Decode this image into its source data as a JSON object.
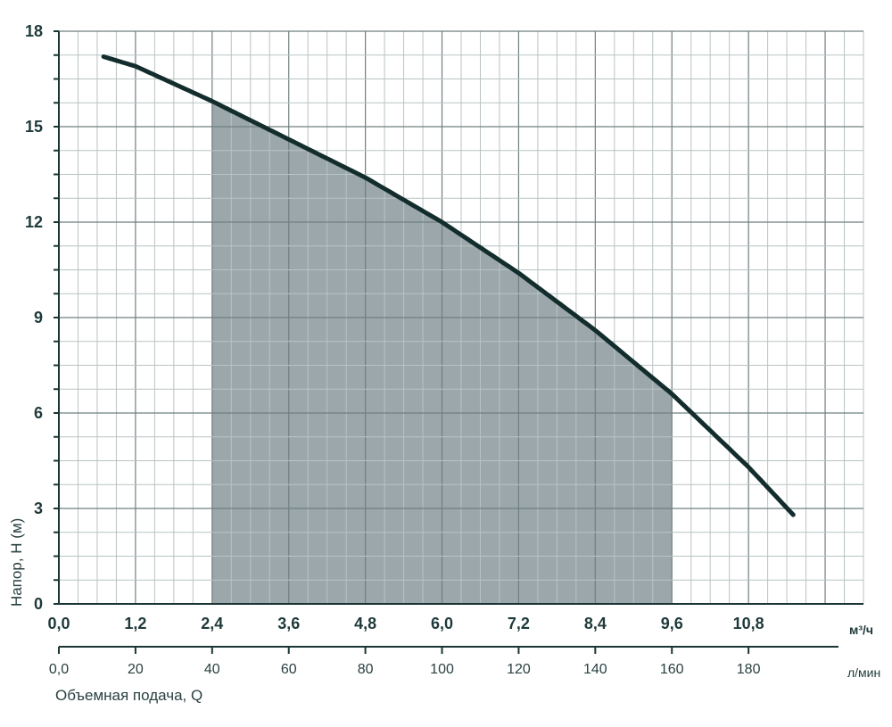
{
  "chart_data": {
    "type": "line",
    "title": "",
    "ylabel": "Напор, Н (м)",
    "xlabel": "Объемная подача, Q",
    "x_unit_top": "м³/ч",
    "x_unit_bottom": "л/мин",
    "xlim": [
      0,
      12.6
    ],
    "ylim": [
      0,
      18
    ],
    "x_ticks": [
      "0,0",
      "1,2",
      "2,4",
      "3,6",
      "4,8",
      "6,0",
      "7,2",
      "8,4",
      "9,6",
      "10,8"
    ],
    "x_tick_values": [
      0,
      1.2,
      2.4,
      3.6,
      4.8,
      6.0,
      7.2,
      8.4,
      9.6,
      10.8
    ],
    "x2_ticks": [
      "0,0",
      "20",
      "40",
      "60",
      "80",
      "100",
      "120",
      "140",
      "160",
      "180"
    ],
    "y_ticks": [
      "0",
      "3",
      "6",
      "9",
      "12",
      "15",
      "18"
    ],
    "y_tick_values": [
      0,
      3,
      6,
      9,
      12,
      15,
      18
    ],
    "grid": true,
    "series": [
      {
        "x": [
          0.7,
          1.2,
          2.4,
          3.6,
          4.8,
          6.0,
          7.2,
          8.4,
          9.6,
          10.8,
          11.5
        ],
        "y": [
          17.2,
          16.9,
          15.8,
          14.6,
          13.4,
          12.0,
          10.4,
          8.6,
          6.6,
          4.3,
          2.8
        ]
      }
    ],
    "recommended_range": [
      2.4,
      9.6
    ],
    "colors": {
      "curve": "#132d2d",
      "band": "#8d9b9e",
      "grid_major": "#6f7f80",
      "grid_minor": "#b9c3c3"
    }
  }
}
